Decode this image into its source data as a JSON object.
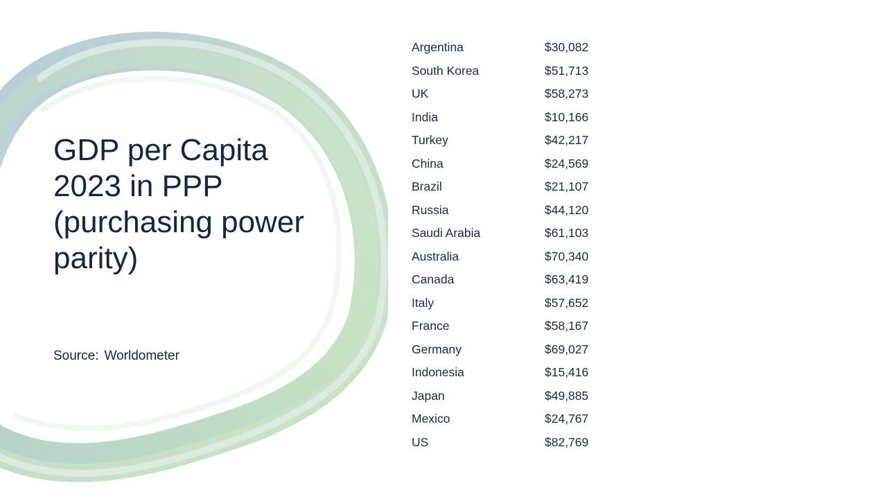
{
  "slide": {
    "title": "GDP per Capita 2023 in PPP (purchasing power parity)",
    "source_label": "Source:",
    "source_value": "Worldometer"
  },
  "table": {
    "rows": [
      {
        "country": "Argentina",
        "value": "$30,082"
      },
      {
        "country": "South Korea",
        "value": "$51,713"
      },
      {
        "country": "UK",
        "value": "$58,273"
      },
      {
        "country": "India",
        "value": "$10,166"
      },
      {
        "country": "Turkey",
        "value": "$42,217"
      },
      {
        "country": "China",
        "value": "$24,569"
      },
      {
        "country": "Brazil",
        "value": "$21,107"
      },
      {
        "country": "Russia",
        "value": "$44,120"
      },
      {
        "country": "Saudi Arabia",
        "value": "$61,103"
      },
      {
        "country": "Australia",
        "value": "$70,340"
      },
      {
        "country": "Canada",
        "value": "$63,419"
      },
      {
        "country": "Italy",
        "value": "$57,652"
      },
      {
        "country": "France",
        "value": "$58,167"
      },
      {
        "country": "Germany",
        "value": "$69,027"
      },
      {
        "country": "Indonesia",
        "value": "$15,416"
      },
      {
        "country": "Japan",
        "value": "$49,885"
      },
      {
        "country": "Mexico",
        "value": "$24,767"
      },
      {
        "country": "US",
        "value": "$82,769"
      }
    ]
  },
  "colors": {
    "text": "#13273f",
    "ring_blue": "#a9c3d3",
    "ring_green": "#b8dbb4"
  }
}
